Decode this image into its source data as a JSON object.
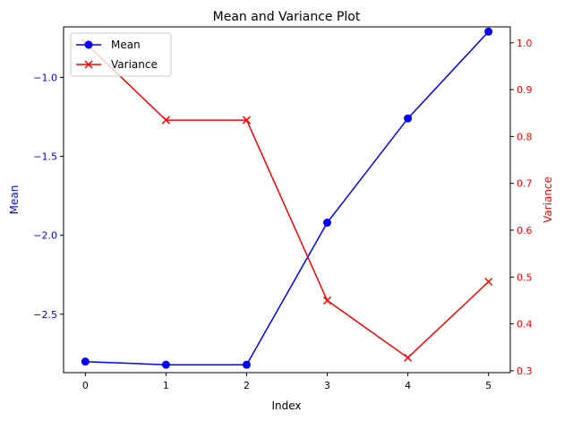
{
  "chart_data": {
    "type": "line",
    "title": "Mean and Variance Plot",
    "xlabel": "Index",
    "x": [
      0,
      1,
      2,
      3,
      4,
      5
    ],
    "xticks": [
      0,
      1,
      2,
      3,
      4,
      5
    ],
    "xlim": [
      -0.27,
      5.27
    ],
    "axes": {
      "left": {
        "label": "Mean",
        "color": "#0000ff",
        "lim": [
          -2.87,
          -0.68
        ],
        "ticks": [
          -2.5,
          -2.0,
          -1.5,
          -1.0
        ],
        "tick_labels": [
          "−2.5",
          "−2.0",
          "−1.5",
          "−1.0"
        ]
      },
      "right": {
        "label": "Variance",
        "color": "#ff0000",
        "lim": [
          0.296,
          1.034
        ],
        "ticks": [
          0.3,
          0.4,
          0.5,
          0.6,
          0.7,
          0.8,
          0.9,
          1.0
        ],
        "tick_labels": [
          "0.3",
          "0.4",
          "0.5",
          "0.6",
          "0.7",
          "0.8",
          "0.9",
          "1.0"
        ]
      }
    },
    "series": [
      {
        "name": "Mean",
        "axis": "left",
        "color": "#0000ff",
        "marker": "circle",
        "values": [
          -2.8,
          -2.82,
          -2.82,
          -1.92,
          -1.26,
          -0.71
        ]
      },
      {
        "name": "Variance",
        "axis": "right",
        "color": "#ff0000",
        "marker": "x",
        "values": [
          1.0,
          0.835,
          0.835,
          0.45,
          0.328,
          0.49
        ]
      }
    ],
    "legend": {
      "placement": "top-left"
    },
    "grid": false
  }
}
